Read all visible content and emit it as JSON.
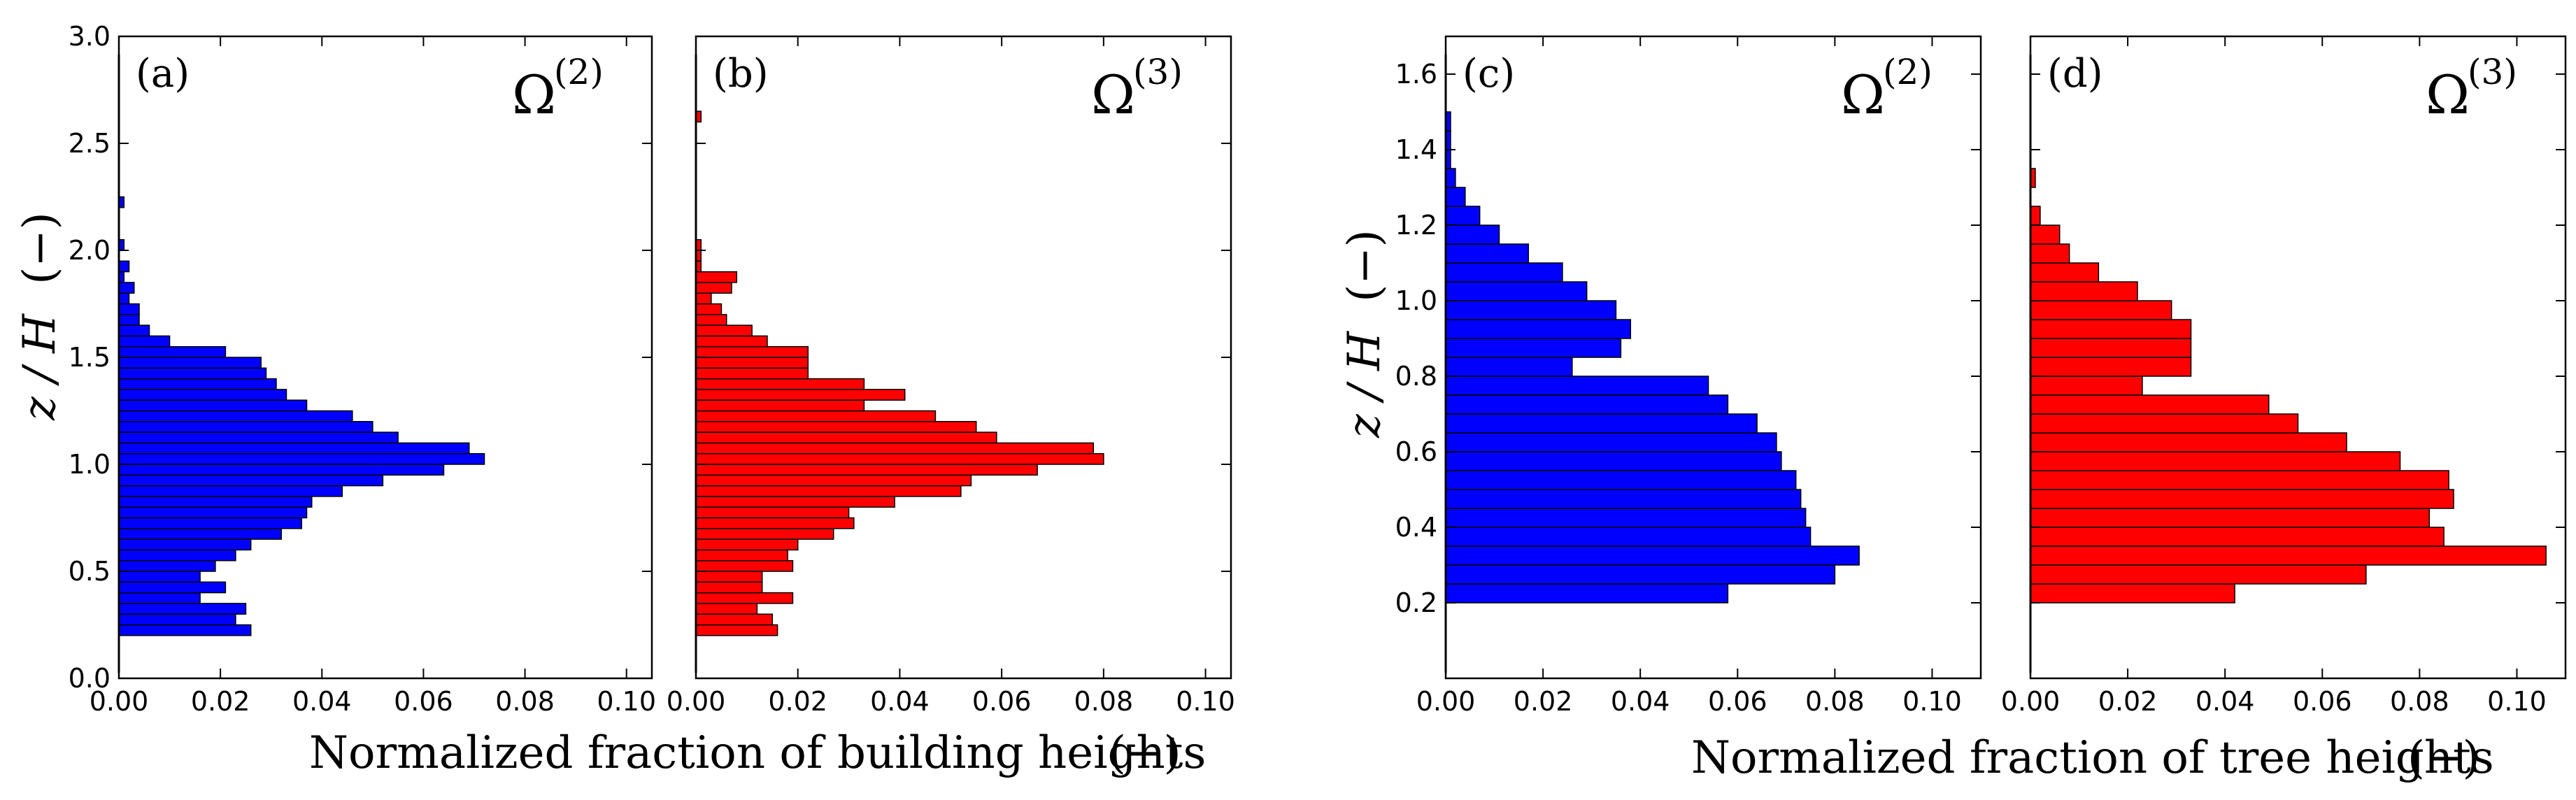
{
  "chart_data": [
    {
      "type": "bar",
      "orientation": "horizontal",
      "group": "buildings",
      "panel_label": "(a)",
      "omega_base": "Ω",
      "omega_exponent": "(2)",
      "color": "#0000ff",
      "xlim": [
        0,
        0.105
      ],
      "ylim": [
        0,
        3.0
      ],
      "xticks": [
        "0.00",
        "0.02",
        "0.04",
        "0.06",
        "0.08",
        "0.10"
      ],
      "xtick_values": [
        0,
        0.02,
        0.04,
        0.06,
        0.08,
        0.1
      ],
      "yticks": [
        "0.0",
        "0.5",
        "1.0",
        "1.5",
        "2.0",
        "2.5",
        "3.0"
      ],
      "ytick_values": [
        0,
        0.5,
        1.0,
        1.5,
        2.0,
        2.5,
        3.0
      ],
      "bin_width": 0.05,
      "bin_start": [
        0.2,
        0.25,
        0.3,
        0.35,
        0.4,
        0.45,
        0.5,
        0.55,
        0.6,
        0.65,
        0.7,
        0.75,
        0.8,
        0.85,
        0.9,
        0.95,
        1.0,
        1.05,
        1.1,
        1.15,
        1.2,
        1.25,
        1.3,
        1.35,
        1.4,
        1.45,
        1.5,
        1.55,
        1.6,
        1.65,
        1.7,
        1.75,
        1.8,
        1.85,
        1.9,
        1.95,
        2.0,
        2.05,
        2.1,
        2.15,
        2.2
      ],
      "values": [
        0.026,
        0.023,
        0.025,
        0.016,
        0.021,
        0.016,
        0.019,
        0.023,
        0.026,
        0.032,
        0.036,
        0.037,
        0.038,
        0.044,
        0.052,
        0.064,
        0.072,
        0.069,
        0.055,
        0.05,
        0.046,
        0.037,
        0.033,
        0.031,
        0.029,
        0.028,
        0.021,
        0.01,
        0.006,
        0.004,
        0.004,
        0.002,
        0.003,
        0.001,
        0.002,
        0.0,
        0.001,
        0.0,
        0.0,
        0.0,
        0.001
      ]
    },
    {
      "type": "bar",
      "orientation": "horizontal",
      "group": "buildings",
      "panel_label": "(b)",
      "omega_base": "Ω",
      "omega_exponent": "(3)",
      "color": "#ff0000",
      "xlim": [
        0,
        0.105
      ],
      "ylim": [
        0,
        3.0
      ],
      "xticks": [
        "0.00",
        "0.02",
        "0.04",
        "0.06",
        "0.08",
        "0.10"
      ],
      "xtick_values": [
        0,
        0.02,
        0.04,
        0.06,
        0.08,
        0.1
      ],
      "bin_width": 0.05,
      "bin_start": [
        0.2,
        0.25,
        0.3,
        0.35,
        0.4,
        0.45,
        0.5,
        0.55,
        0.6,
        0.65,
        0.7,
        0.75,
        0.8,
        0.85,
        0.9,
        0.95,
        1.0,
        1.05,
        1.1,
        1.15,
        1.2,
        1.25,
        1.3,
        1.35,
        1.4,
        1.45,
        1.5,
        1.55,
        1.6,
        1.65,
        1.7,
        1.75,
        1.8,
        1.85,
        1.9,
        1.95,
        2.0,
        2.05,
        2.1,
        2.15,
        2.2,
        2.25,
        2.3,
        2.35,
        2.4,
        2.45,
        2.5,
        2.55,
        2.6
      ],
      "values": [
        0.016,
        0.015,
        0.012,
        0.019,
        0.013,
        0.013,
        0.019,
        0.018,
        0.02,
        0.027,
        0.031,
        0.03,
        0.039,
        0.052,
        0.054,
        0.067,
        0.08,
        0.078,
        0.059,
        0.055,
        0.047,
        0.033,
        0.041,
        0.033,
        0.022,
        0.022,
        0.022,
        0.014,
        0.011,
        0.006,
        0.005,
        0.003,
        0.007,
        0.008,
        0.001,
        0.001,
        0.001,
        0.0,
        0.0,
        0.0,
        0.0,
        0.0,
        0.0,
        0.0,
        0.0,
        0.0,
        0.0,
        0.0,
        0.001
      ]
    },
    {
      "type": "bar",
      "orientation": "horizontal",
      "group": "trees",
      "panel_label": "(c)",
      "omega_base": "Ω",
      "omega_exponent": "(2)",
      "color": "#0000ff",
      "xlim": [
        0,
        0.11
      ],
      "ylim": [
        0,
        1.7
      ],
      "xticks": [
        "0.00",
        "0.02",
        "0.04",
        "0.06",
        "0.08",
        "0.10"
      ],
      "xtick_values": [
        0,
        0.02,
        0.04,
        0.06,
        0.08,
        0.1
      ],
      "yticks": [
        "0.2",
        "0.4",
        "0.6",
        "0.8",
        "1.0",
        "1.2",
        "1.4",
        "1.6"
      ],
      "ytick_values": [
        0.2,
        0.4,
        0.6,
        0.8,
        1.0,
        1.2,
        1.4,
        1.6
      ],
      "bin_width": 0.05,
      "bin_start": [
        0.2,
        0.25,
        0.3,
        0.35,
        0.4,
        0.45,
        0.5,
        0.55,
        0.6,
        0.65,
        0.7,
        0.75,
        0.8,
        0.85,
        0.9,
        0.95,
        1.0,
        1.05,
        1.1,
        1.15,
        1.2,
        1.25,
        1.3,
        1.35,
        1.4,
        1.45
      ],
      "values": [
        0.058,
        0.08,
        0.085,
        0.075,
        0.074,
        0.073,
        0.072,
        0.069,
        0.068,
        0.064,
        0.058,
        0.054,
        0.026,
        0.036,
        0.038,
        0.035,
        0.029,
        0.024,
        0.017,
        0.011,
        0.007,
        0.004,
        0.002,
        0.001,
        0.001,
        0.001
      ]
    },
    {
      "type": "bar",
      "orientation": "horizontal",
      "group": "trees",
      "panel_label": "(d)",
      "omega_base": "Ω",
      "omega_exponent": "(3)",
      "color": "#ff0000",
      "xlim": [
        0,
        0.11
      ],
      "ylim": [
        0,
        1.7
      ],
      "xticks": [
        "0.00",
        "0.02",
        "0.04",
        "0.06",
        "0.08",
        "0.10"
      ],
      "xtick_values": [
        0,
        0.02,
        0.04,
        0.06,
        0.08,
        0.1
      ],
      "bin_width": 0.05,
      "bin_start": [
        0.2,
        0.25,
        0.3,
        0.35,
        0.4,
        0.45,
        0.5,
        0.55,
        0.6,
        0.65,
        0.7,
        0.75,
        0.8,
        0.85,
        0.9,
        0.95,
        1.0,
        1.05,
        1.1,
        1.15,
        1.2,
        1.25,
        1.3
      ],
      "values": [
        0.042,
        0.069,
        0.106,
        0.085,
        0.082,
        0.087,
        0.086,
        0.076,
        0.065,
        0.055,
        0.049,
        0.023,
        0.033,
        0.033,
        0.033,
        0.029,
        0.022,
        0.014,
        0.008,
        0.006,
        0.002,
        0.0,
        0.001
      ]
    }
  ],
  "xlabels": {
    "buildings": "Normalized fraction of building heights",
    "trees": "Normalized fraction of tree heights",
    "unit": "(−)"
  },
  "ylabel": {
    "text": "z / H",
    "unit": "(−)"
  }
}
